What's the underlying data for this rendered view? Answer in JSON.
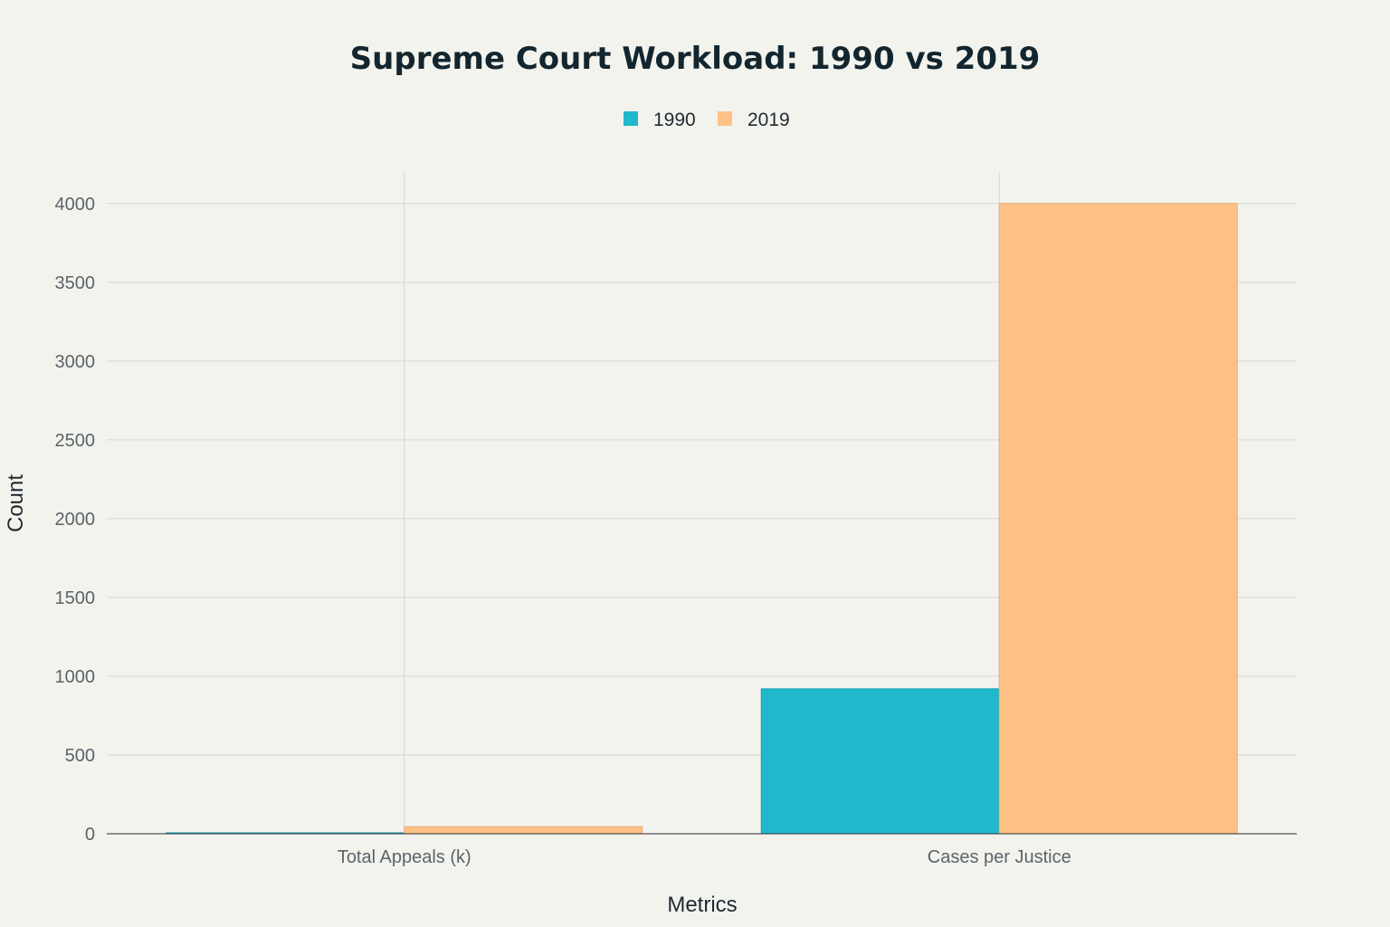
{
  "chart_data": {
    "type": "bar",
    "title": "Supreme Court Workload: 1990 vs 2019",
    "xlabel": "Metrics",
    "ylabel": "Count",
    "categories": [
      "Total Appeals (k)",
      "Cases per Justice"
    ],
    "series": [
      {
        "name": "1990",
        "color": "#1fb8cd",
        "values": [
          6,
          920
        ]
      },
      {
        "name": "2019",
        "color": "#ffc185",
        "values": [
          45,
          4000
        ]
      }
    ],
    "ylim": [
      0,
      4200
    ],
    "yticks": [
      0,
      500,
      1000,
      1500,
      2000,
      2500,
      3000,
      3500,
      4000
    ],
    "grid": true,
    "legend_position": "top-center"
  }
}
